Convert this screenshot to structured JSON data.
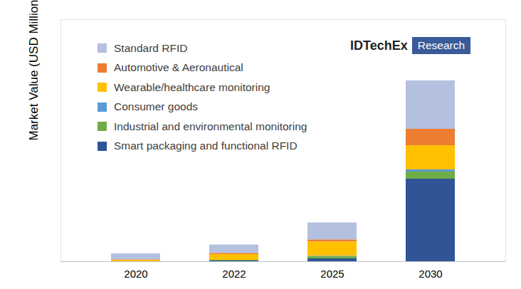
{
  "chart_data": {
    "type": "bar",
    "stacked": true,
    "y_label": "Market Value (USD Millions)",
    "annotations": [
      "IDTechEx",
      "Research"
    ],
    "categories": [
      "2020",
      "2022",
      "2025",
      "2030"
    ],
    "series": [
      {
        "name": "Standard RFID",
        "color": "#b4c0e0",
        "values": [
          85,
          120,
          240,
          680
        ]
      },
      {
        "name": "Automotive & Aeronautical",
        "color": "#ed7d31",
        "values": [
          5,
          15,
          30,
          230
        ]
      },
      {
        "name": "Wearable/healthcare monitoring",
        "color": "#ffc000",
        "values": [
          20,
          80,
          200,
          340
        ]
      },
      {
        "name": "Consumer goods",
        "color": "#5b9bd5",
        "values": [
          0,
          0,
          5,
          30
        ]
      },
      {
        "name": "Industrial and environmental monitoring",
        "color": "#70ad47",
        "values": [
          0,
          10,
          30,
          100
        ]
      },
      {
        "name": "Smart packaging and functional RFID",
        "color": "#2f5597",
        "values": [
          0,
          10,
          40,
          1160
        ]
      }
    ],
    "ylim": [
      0,
      3400
    ],
    "yticks": [],
    "tick_labels": "x",
    "grid": false,
    "legend": "top-left"
  }
}
